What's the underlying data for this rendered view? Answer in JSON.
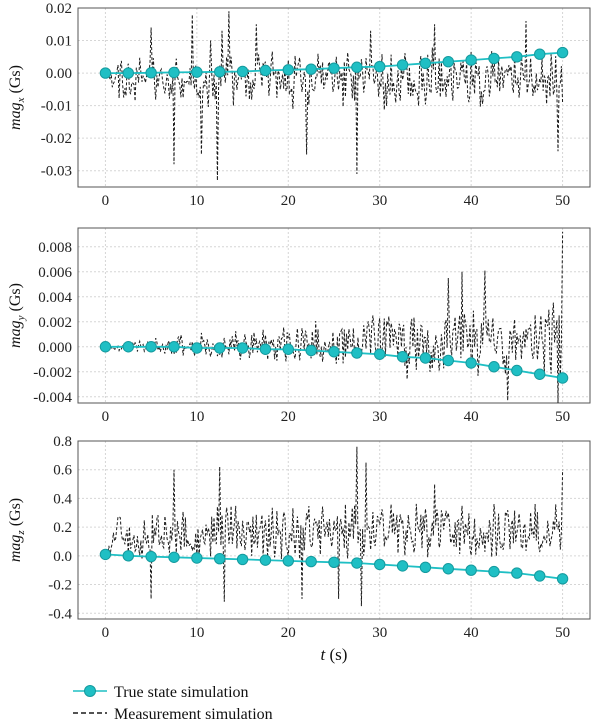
{
  "chart_data": [
    {
      "type": "line",
      "ylabel_main": "mag",
      "ylabel_sub": "x",
      "ylabel_unit": "(Gs)",
      "xlim": [
        -3,
        53
      ],
      "ylim": [
        -0.035,
        0.02
      ],
      "xticks": [
        "0",
        "10",
        "20",
        "30",
        "40",
        "50"
      ],
      "xtick_values": [
        0,
        10,
        20,
        30,
        40,
        50
      ],
      "yticks": [
        "0.02",
        "0.01",
        "0.00",
        "-0.01",
        "-0.02",
        "-0.03"
      ],
      "ytick_values": [
        0.02,
        0.01,
        0.0,
        -0.01,
        -0.02,
        -0.03
      ],
      "grid": true,
      "series": [
        {
          "name": "True state simulation",
          "style": "solid-markers",
          "x": [
            0,
            2.5,
            5,
            7.5,
            10,
            12.5,
            15,
            17.5,
            20,
            22.5,
            25,
            27.5,
            30,
            32.5,
            35,
            37.5,
            40,
            42.5,
            45,
            47.5,
            50
          ],
          "y": [
            0.0,
            0.0,
            0.0001,
            0.0002,
            0.0003,
            0.0004,
            0.0005,
            0.0008,
            0.001,
            0.0012,
            0.0015,
            0.0018,
            0.002,
            0.0025,
            0.003,
            0.0035,
            0.004,
            0.0045,
            0.005,
            0.0058,
            0.0063
          ]
        },
        {
          "name": "Measurement simulation",
          "style": "dashed",
          "t_range": [
            0,
            50
          ],
          "samples": 400,
          "amplitude_start": 0.007,
          "amplitude_end": 0.01,
          "offset": -0.004,
          "spikes": [
            [
              5,
              0.014
            ],
            [
              7.5,
              -0.028
            ],
            [
              9.5,
              0.018
            ],
            [
              10.5,
              -0.025
            ],
            [
              11.5,
              0.01
            ],
            [
              12.3,
              -0.033
            ],
            [
              12.8,
              0.013
            ],
            [
              13.5,
              0.019
            ],
            [
              14,
              -0.01
            ],
            [
              16.5,
              0.015
            ],
            [
              22,
              -0.025
            ],
            [
              27.5,
              -0.031
            ],
            [
              29,
              0.013
            ],
            [
              36,
              0.015
            ],
            [
              46,
              0.016
            ],
            [
              49.5,
              -0.024
            ]
          ],
          "seed": 11
        }
      ]
    },
    {
      "type": "line",
      "ylabel_main": "mag",
      "ylabel_sub": "y",
      "ylabel_unit": "(Gs)",
      "xlim": [
        -3,
        53
      ],
      "ylim": [
        -0.0045,
        0.0095
      ],
      "xticks": [
        "0",
        "10",
        "20",
        "30",
        "40",
        "50"
      ],
      "xtick_values": [
        0,
        10,
        20,
        30,
        40,
        50
      ],
      "yticks": [
        "0.008",
        "0.006",
        "0.004",
        "0.002",
        "0.000",
        "-0.002",
        "-0.004"
      ],
      "ytick_values": [
        0.008,
        0.006,
        0.004,
        0.002,
        0.0,
        -0.002,
        -0.004
      ],
      "grid": true,
      "series": [
        {
          "name": "True state simulation",
          "style": "solid-markers",
          "x": [
            0,
            2.5,
            5,
            7.5,
            10,
            12.5,
            15,
            17.5,
            20,
            22.5,
            25,
            27.5,
            30,
            32.5,
            35,
            37.5,
            40,
            42.5,
            45,
            47.5,
            50
          ],
          "y": [
            0.0,
            0.0,
            0.0,
            0.0,
            -0.0001,
            -0.0001,
            -0.0001,
            -0.0002,
            -0.0002,
            -0.0003,
            -0.0004,
            -0.0005,
            -0.0006,
            -0.0008,
            -0.0009,
            -0.0011,
            -0.0013,
            -0.0016,
            -0.0019,
            -0.0022,
            -0.0025
          ]
        },
        {
          "name": "Measurement simulation",
          "style": "dashed",
          "t_range": [
            0,
            50
          ],
          "samples": 400,
          "amplitude_start": 0.0003,
          "amplitude_end": 0.0035,
          "offset": 0.0007,
          "spikes": [
            [
              39,
              0.006
            ],
            [
              41.5,
              0.0061
            ],
            [
              44,
              -0.0043
            ],
            [
              49.5,
              -0.0045
            ],
            [
              50,
              0.0092
            ],
            [
              37.5,
              0.0055
            ],
            [
              33,
              -0.0026
            ]
          ],
          "seed": 23
        }
      ]
    },
    {
      "type": "line",
      "ylabel_main": "mag",
      "ylabel_sub": "z",
      "ylabel_unit": "(Gs)",
      "xlim": [
        -3,
        53
      ],
      "ylim": [
        -0.44,
        0.8
      ],
      "xticks": [
        "0",
        "10",
        "20",
        "30",
        "40",
        "50"
      ],
      "xtick_values": [
        0,
        10,
        20,
        30,
        40,
        50
      ],
      "yticks": [
        "0.8",
        "0.6",
        "0.4",
        "0.2",
        "0.0",
        "-0.2",
        "-0.4"
      ],
      "ytick_values": [
        0.8,
        0.6,
        0.4,
        0.2,
        0.0,
        -0.2,
        -0.4
      ],
      "xlabel_main": "t",
      "xlabel_unit": "(s)",
      "grid": true,
      "series": [
        {
          "name": "True state simulation",
          "style": "solid-markers",
          "x": [
            0,
            2.5,
            5,
            7.5,
            10,
            12.5,
            15,
            17.5,
            20,
            22.5,
            25,
            27.5,
            30,
            32.5,
            35,
            37.5,
            40,
            42.5,
            45,
            47.5,
            50
          ],
          "y": [
            0.01,
            0.0,
            -0.005,
            -0.01,
            -0.015,
            -0.02,
            -0.025,
            -0.03,
            -0.035,
            -0.04,
            -0.045,
            -0.05,
            -0.06,
            -0.07,
            -0.08,
            -0.09,
            -0.1,
            -0.11,
            -0.12,
            -0.14,
            -0.16
          ]
        },
        {
          "name": "Measurement simulation",
          "style": "dashed",
          "t_range": [
            0,
            50
          ],
          "samples": 400,
          "amplitude_start": 0.2,
          "amplitude_end": 0.2,
          "offset": 0.17,
          "spikes": [
            [
              5,
              -0.3
            ],
            [
              7.5,
              0.6
            ],
            [
              12.5,
              0.62
            ],
            [
              13,
              -0.32
            ],
            [
              21.5,
              -0.3
            ],
            [
              27.5,
              0.76
            ],
            [
              28.5,
              0.65
            ],
            [
              28,
              -0.35
            ],
            [
              25.5,
              -0.3
            ],
            [
              50,
              0.6
            ],
            [
              36,
              0.5
            ]
          ],
          "seed": 37
        }
      ]
    }
  ],
  "legend": {
    "true_label": "True state simulation",
    "meas_label": "Measurement simulation"
  },
  "colors": {
    "true": "#1fbfc4",
    "true_marker_edge": "#159a9e",
    "measurement": "#1a1a1a",
    "grid": "#d6d6d6",
    "axis": "#555555"
  }
}
